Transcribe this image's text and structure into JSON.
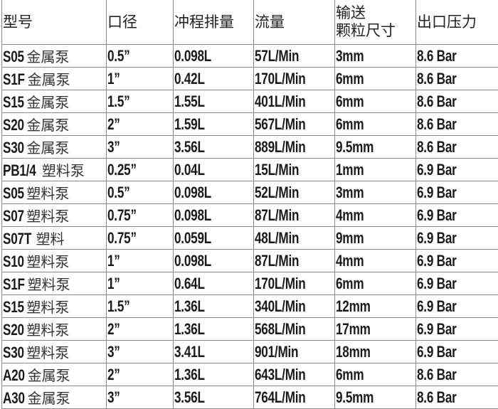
{
  "headers": [
    "型号",
    "口径",
    "冲程排量",
    "流量",
    "输送\n颗粒尺寸",
    "出口压力"
  ],
  "header_lines": {
    "col4": [
      "输送",
      "颗粒尺寸"
    ]
  },
  "rows": [
    {
      "code": "S05",
      "type": "金属泵",
      "size": "0.5”",
      "stroke": "0.098L",
      "flow": "57L/Min",
      "particle": "3mm",
      "pressure": "8.6 Bar"
    },
    {
      "code": "S1F",
      "type": "金属泵",
      "size": "1”",
      "stroke": "0.42L",
      "flow": "170L/Min",
      "particle": "6mm",
      "pressure": "8.6 Bar"
    },
    {
      "code": "S15",
      "type": "金属泵",
      "size": "1.5”",
      "stroke": "1.55L",
      "flow": "401L/Min",
      "particle": "6mm",
      "pressure": "8.6 Bar"
    },
    {
      "code": "S20",
      "type": "金属泵",
      "size": "2”",
      "stroke": "1.59L",
      "flow": "567L/Min",
      "particle": "6mm",
      "pressure": "8.6 Bar"
    },
    {
      "code": "S30",
      "type": "金属泵",
      "size": "3”",
      "stroke": "3.56L",
      "flow": "889L/Min",
      "particle": "9.5mm",
      "pressure": "8.6 Bar"
    },
    {
      "code": "PB1/4",
      "type": "塑料泵",
      "size": "0.25”",
      "stroke": "0.04L",
      "flow": "15L/Min",
      "particle": "1mm",
      "pressure": "6.9 Bar"
    },
    {
      "code": "S05",
      "type": "塑料泵",
      "size": "0.5”",
      "stroke": "0.098L",
      "flow": "52L/Min",
      "particle": "3mm",
      "pressure": "6.9 Bar"
    },
    {
      "code": "S07",
      "type": "塑料泵",
      "size": "0.75”",
      "stroke": "0.098L",
      "flow": "87L/Min",
      "particle": "4mm",
      "pressure": "6.9 Bar"
    },
    {
      "code": "S07T",
      "type": "塑料",
      "size": "0.75”",
      "stroke": "0.059L",
      "flow": "48L/Min",
      "particle": "9mm",
      "pressure": "6.9 Bar"
    },
    {
      "code": "S10",
      "type": "塑料泵",
      "size": "1”",
      "stroke": "0.098L",
      "flow": "87L/Min",
      "particle": "4mm",
      "pressure": "6.9 Bar"
    },
    {
      "code": "S1F",
      "type": "塑料泵",
      "size": "1”",
      "stroke": "0.64L",
      "flow": "170L/Min",
      "particle": "6mm",
      "pressure": "6.9 Bar"
    },
    {
      "code": "S15",
      "type": "塑料泵",
      "size": "1.5”",
      "stroke": "1.36L",
      "flow": "340L/Min",
      "particle": "12mm",
      "pressure": "6.9 Bar"
    },
    {
      "code": "S20",
      "type": "塑料泵",
      "size": "2”",
      "stroke": "1.36L",
      "flow": "568L/Min",
      "particle": "17mm",
      "pressure": "6.9 Bar"
    },
    {
      "code": "S30",
      "type": "塑料泵",
      "size": "3”",
      "stroke": "3.41L",
      "flow": "901/Min",
      "particle": "18mm",
      "pressure": "6.9 Bar"
    },
    {
      "code": "A20",
      "type": "金属泵",
      "size": "2”",
      "stroke": "1.36L",
      "flow": "643L/Min",
      "particle": "6mm",
      "pressure": "8.6 Bar"
    },
    {
      "code": "A30",
      "type": "金属泵",
      "size": "3”",
      "stroke": "3.56L",
      "flow": "764L/Min",
      "particle": "9.5mm",
      "pressure": "8.6 Bar"
    }
  ]
}
